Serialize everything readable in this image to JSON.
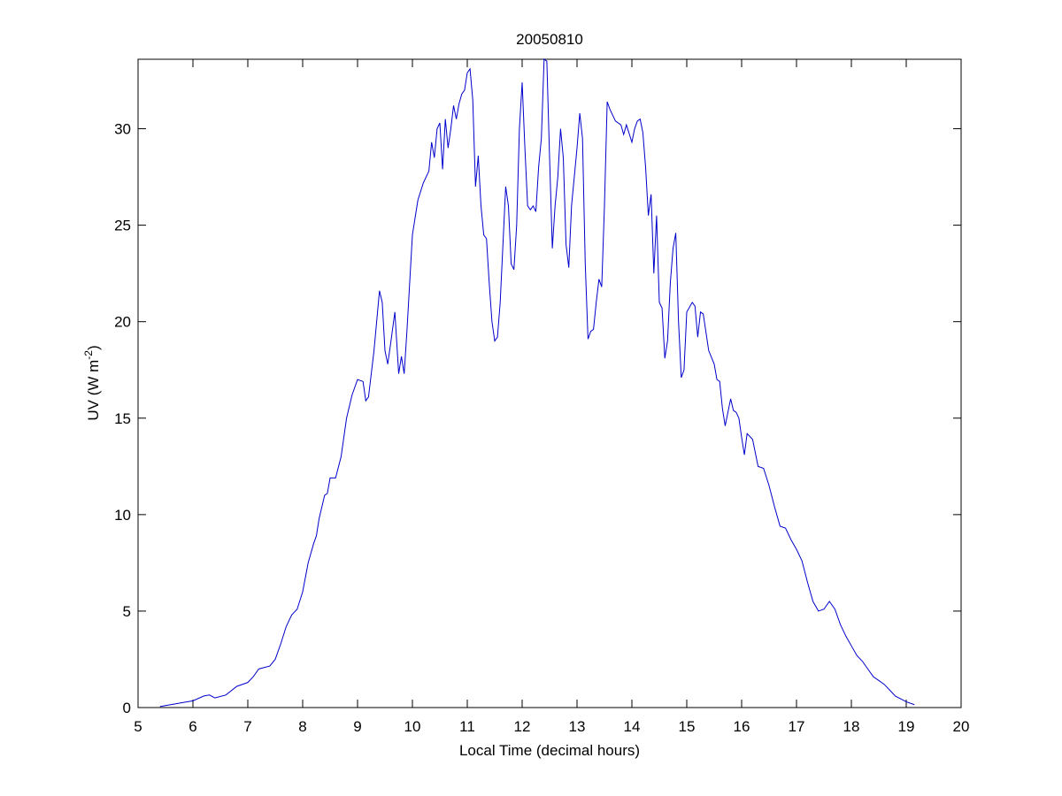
{
  "chart_data": {
    "type": "line",
    "title": "20050810",
    "x_label": "Local Time (decimal hours)",
    "y_label": {
      "text": "UV (W m",
      "superscript": "-2",
      "closing": ")"
    },
    "color": "#0000cc",
    "xlim": [
      5,
      20
    ],
    "xticks": [
      5,
      6,
      7,
      8,
      9,
      10,
      11,
      12,
      13,
      14,
      15,
      16,
      17,
      18,
      19,
      20
    ],
    "ylim": [
      0,
      33.6
    ],
    "yticks": [
      0,
      5,
      10,
      15,
      20,
      25,
      30
    ],
    "x": [
      5.4,
      5.8,
      6.0,
      6.2,
      6.3,
      6.4,
      6.6,
      6.8,
      7.0,
      7.1,
      7.2,
      7.4,
      7.5,
      7.6,
      7.7,
      7.8,
      7.9,
      8.0,
      8.1,
      8.2,
      8.25,
      8.3,
      8.4,
      8.45,
      8.5,
      8.6,
      8.7,
      8.8,
      8.9,
      9.0,
      9.1,
      9.15,
      9.2,
      9.3,
      9.4,
      9.45,
      9.5,
      9.55,
      9.6,
      9.68,
      9.75,
      9.8,
      9.85,
      9.9,
      9.95,
      10.0,
      10.1,
      10.2,
      10.3,
      10.35,
      10.4,
      10.45,
      10.5,
      10.55,
      10.6,
      10.65,
      10.7,
      10.75,
      10.8,
      10.85,
      10.9,
      10.95,
      11.0,
      11.05,
      11.1,
      11.15,
      11.2,
      11.25,
      11.3,
      11.35,
      11.4,
      11.45,
      11.5,
      11.55,
      11.6,
      11.65,
      11.7,
      11.75,
      11.8,
      11.85,
      11.9,
      11.95,
      12.0,
      12.05,
      12.1,
      12.15,
      12.2,
      12.25,
      12.3,
      12.35,
      12.4,
      12.45,
      12.5,
      12.55,
      12.6,
      12.65,
      12.7,
      12.75,
      12.8,
      12.85,
      12.9,
      13.0,
      13.05,
      13.1,
      13.15,
      13.2,
      13.25,
      13.3,
      13.35,
      13.4,
      13.45,
      13.5,
      13.55,
      13.6,
      13.7,
      13.8,
      13.85,
      13.9,
      14.0,
      14.05,
      14.1,
      14.15,
      14.2,
      14.25,
      14.3,
      14.35,
      14.4,
      14.45,
      14.5,
      14.55,
      14.6,
      14.65,
      14.7,
      14.75,
      14.8,
      14.85,
      14.9,
      14.95,
      15.0,
      15.1,
      15.15,
      15.2,
      15.25,
      15.3,
      15.4,
      15.5,
      15.55,
      15.6,
      15.65,
      15.7,
      15.8,
      15.85,
      15.9,
      15.95,
      16.0,
      16.05,
      16.1,
      16.2,
      16.3,
      16.4,
      16.5,
      16.6,
      16.7,
      16.8,
      16.9,
      17.0,
      17.1,
      17.2,
      17.3,
      17.4,
      17.5,
      17.6,
      17.7,
      17.8,
      17.9,
      18.0,
      18.1,
      18.2,
      18.3,
      18.4,
      18.5,
      18.6,
      18.7,
      18.8,
      18.9,
      19.0,
      19.15
    ],
    "values": [
      0.05,
      0.25,
      0.35,
      0.6,
      0.65,
      0.5,
      0.65,
      1.1,
      1.3,
      1.6,
      2.0,
      2.15,
      2.5,
      3.3,
      4.2,
      4.8,
      5.1,
      6.0,
      7.5,
      8.5,
      8.9,
      9.8,
      11.0,
      11.1,
      11.9,
      11.9,
      13.0,
      15.0,
      16.2,
      17.0,
      16.9,
      15.9,
      16.1,
      18.5,
      21.6,
      21.0,
      18.5,
      17.8,
      18.8,
      20.5,
      17.3,
      18.2,
      17.3,
      19.5,
      22.0,
      24.5,
      26.3,
      27.2,
      27.8,
      29.3,
      28.5,
      30.0,
      30.3,
      27.9,
      30.5,
      29.0,
      30.0,
      31.2,
      30.5,
      31.3,
      31.8,
      32.0,
      32.9,
      33.1,
      31.5,
      27.0,
      28.6,
      26.0,
      24.5,
      24.3,
      22.0,
      20.0,
      19.0,
      19.2,
      21.0,
      24.0,
      27.0,
      26.0,
      23.0,
      22.7,
      25.0,
      30.0,
      32.4,
      29.0,
      26.0,
      25.8,
      26.0,
      25.7,
      28.0,
      29.5,
      33.6,
      33.5,
      28.5,
      23.8,
      26.0,
      27.5,
      30.0,
      28.5,
      24.0,
      22.8,
      26.0,
      29.0,
      30.8,
      29.5,
      23.0,
      19.1,
      19.5,
      19.6,
      21.0,
      22.2,
      21.8,
      26.0,
      31.4,
      31.0,
      30.4,
      30.2,
      29.7,
      30.2,
      29.3,
      30.0,
      30.4,
      30.5,
      29.8,
      28.0,
      25.5,
      26.6,
      22.5,
      25.5,
      21.0,
      20.7,
      18.1,
      19.0,
      22.0,
      23.8,
      24.6,
      20.0,
      17.1,
      17.5,
      20.5,
      21.0,
      20.8,
      19.2,
      20.5,
      20.4,
      18.5,
      17.8,
      17.0,
      16.9,
      15.5,
      14.6,
      16.0,
      15.4,
      15.3,
      15.0,
      14.0,
      13.1,
      14.2,
      13.9,
      12.5,
      12.4,
      11.5,
      10.4,
      9.4,
      9.3,
      8.7,
      8.2,
      7.6,
      6.5,
      5.5,
      5.0,
      5.1,
      5.5,
      5.1,
      4.3,
      3.7,
      3.2,
      2.7,
      2.4,
      2.0,
      1.6,
      1.4,
      1.2,
      0.9,
      0.6,
      0.45,
      0.3,
      0.15
    ]
  }
}
